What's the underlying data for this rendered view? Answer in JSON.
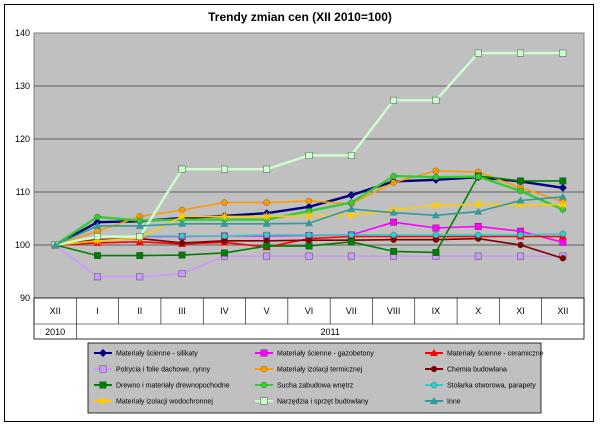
{
  "chart_data": {
    "type": "line",
    "title": "Trendy zmian cen (XII 2010=100)",
    "xlabel": "",
    "ylabel": "",
    "ylim": [
      90,
      140
    ],
    "yticks": [
      90,
      100,
      110,
      120,
      130,
      140
    ],
    "grid": true,
    "legend_position": "bottom",
    "categories": [
      "XII",
      "I",
      "II",
      "III",
      "IV",
      "V",
      "VI",
      "VII",
      "VIII",
      "IX",
      "X",
      "XI",
      "XII"
    ],
    "year_labels": [
      "2010",
      "2011"
    ],
    "series": [
      {
        "name": "Materiały ścienne - silikaty",
        "color": "#000080",
        "marker": "diamond",
        "values": [
          100,
          104.3,
          104.5,
          105.1,
          105.5,
          106.0,
          107.2,
          109.4,
          112.0,
          112.3,
          112.8,
          112.0,
          110.8
        ]
      },
      {
        "name": "Materiały ścienne - gazobetony",
        "color": "#ff00ff",
        "marker": "square",
        "values": [
          100,
          101.6,
          101.6,
          101.6,
          101.7,
          101.7,
          101.8,
          101.9,
          104.3,
          103.2,
          103.5,
          102.6,
          100.5
        ]
      },
      {
        "name": "Materiały ścienne - ceramiczne",
        "color": "#ff0000",
        "marker": "triangle",
        "values": [
          100,
          100.4,
          100.6,
          100.2,
          100.5,
          99.6,
          101.2,
          101.6,
          101.6,
          101.6,
          101.6,
          101.6,
          101.6
        ]
      },
      {
        "name": "Polrycia i folie dachowe, rynny",
        "color": "#cc99ff",
        "marker": "square",
        "values": [
          100,
          94.0,
          94.0,
          94.6,
          97.9,
          97.9,
          97.9,
          97.9,
          97.9,
          97.9,
          97.9,
          97.9,
          97.9
        ]
      },
      {
        "name": "Materiały izolacji termicznej",
        "color": "#ff9900",
        "marker": "circle",
        "values": [
          100,
          102.6,
          105.4,
          106.6,
          108.0,
          108.0,
          108.3,
          107.8,
          111.8,
          114.0,
          113.8,
          110.8,
          108.2
        ]
      },
      {
        "name": "Chemia budowlana",
        "color": "#800000",
        "marker": "circle",
        "values": [
          100,
          101.0,
          101.2,
          100.4,
          100.8,
          100.8,
          100.9,
          100.9,
          101.0,
          101.0,
          101.2,
          100.0,
          97.5
        ]
      },
      {
        "name": "Drewno i materiały drewnopochodne",
        "color": "#008000",
        "marker": "square",
        "values": [
          100,
          98.0,
          98.0,
          98.1,
          98.5,
          99.8,
          99.8,
          100.6,
          98.8,
          98.6,
          113.0,
          112.1,
          112.1
        ]
      },
      {
        "name": "Sucha zabudowa wnętrz",
        "color": "#33cc33",
        "marker": "circle",
        "values": [
          100,
          105.3,
          104.6,
          104.8,
          104.8,
          104.8,
          106.4,
          108.0,
          113.0,
          112.8,
          112.9,
          110.2,
          106.7
        ]
      },
      {
        "name": "Stolarka otworowa, parapety",
        "color": "#33cccc",
        "marker": "circle",
        "values": [
          100,
          101.7,
          101.7,
          101.7,
          101.7,
          101.9,
          101.9,
          101.9,
          101.9,
          101.9,
          101.9,
          101.9,
          102.1
        ]
      },
      {
        "name": "Materiały izolacji wodochronnej",
        "color": "#ffcc00",
        "marker": "star",
        "values": [
          100,
          100.8,
          101.3,
          105.4,
          105.4,
          105.4,
          105.5,
          105.6,
          106.6,
          107.5,
          107.7,
          107.6,
          107.6
        ]
      },
      {
        "name": "Narzędzia i sprzęt budowlany",
        "color": "#ccffcc",
        "marker": "square",
        "values": [
          100,
          101.6,
          101.6,
          114.3,
          114.3,
          114.3,
          116.9,
          116.9,
          127.3,
          127.3,
          136.2,
          136.2,
          136.2
        ]
      },
      {
        "name": "Inne",
        "color": "#339999",
        "marker": "triangle",
        "values": [
          100,
          103.6,
          103.6,
          104.0,
          104.0,
          104.0,
          104.1,
          106.8,
          106.1,
          105.6,
          106.3,
          108.4,
          109.1
        ]
      }
    ]
  }
}
